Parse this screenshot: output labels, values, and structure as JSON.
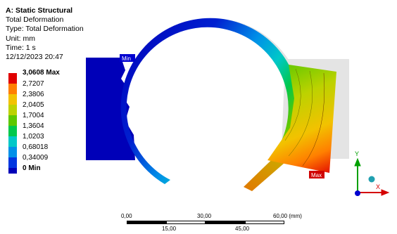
{
  "header": {
    "title": "A: Static Structural",
    "lines": [
      "Total Deformation",
      "Type: Total Deformation",
      "Unit: mm",
      "Time: 1 s",
      "12/12/2023 20:47"
    ]
  },
  "legend": {
    "entries": [
      {
        "label": "3,0608 Max",
        "color": "#e00000"
      },
      {
        "label": "2,7207",
        "color": "#ff7f00"
      },
      {
        "label": "2,3806",
        "color": "#f2c200"
      },
      {
        "label": "2,0405",
        "color": "#bcd200"
      },
      {
        "label": "1,7004",
        "color": "#5dc800"
      },
      {
        "label": "1,3604",
        "color": "#00c84c"
      },
      {
        "label": "1,0203",
        "color": "#00c8c8"
      },
      {
        "label": "0,68018",
        "color": "#0090e8"
      },
      {
        "label": "0,34009",
        "color": "#0036e0"
      },
      {
        "label": "0 Min",
        "color": "#0000b8"
      }
    ]
  },
  "probes": {
    "min_label": "Min",
    "max_label": "Max"
  },
  "scale_bar": {
    "top_ticks": [
      "0,00",
      "30,00",
      "60,00 (mm)"
    ],
    "bottom_ticks": [
      "15,00",
      "45,00"
    ]
  },
  "triad": {
    "x_label": "X",
    "y_label": "Y"
  },
  "colors": {
    "min_probe": "#0000d0",
    "max_probe": "#d00000",
    "undeformed": "#e4e4e4",
    "triad_x": "#d40000",
    "triad_y": "#00a000",
    "triad_z": "#0000d0"
  }
}
